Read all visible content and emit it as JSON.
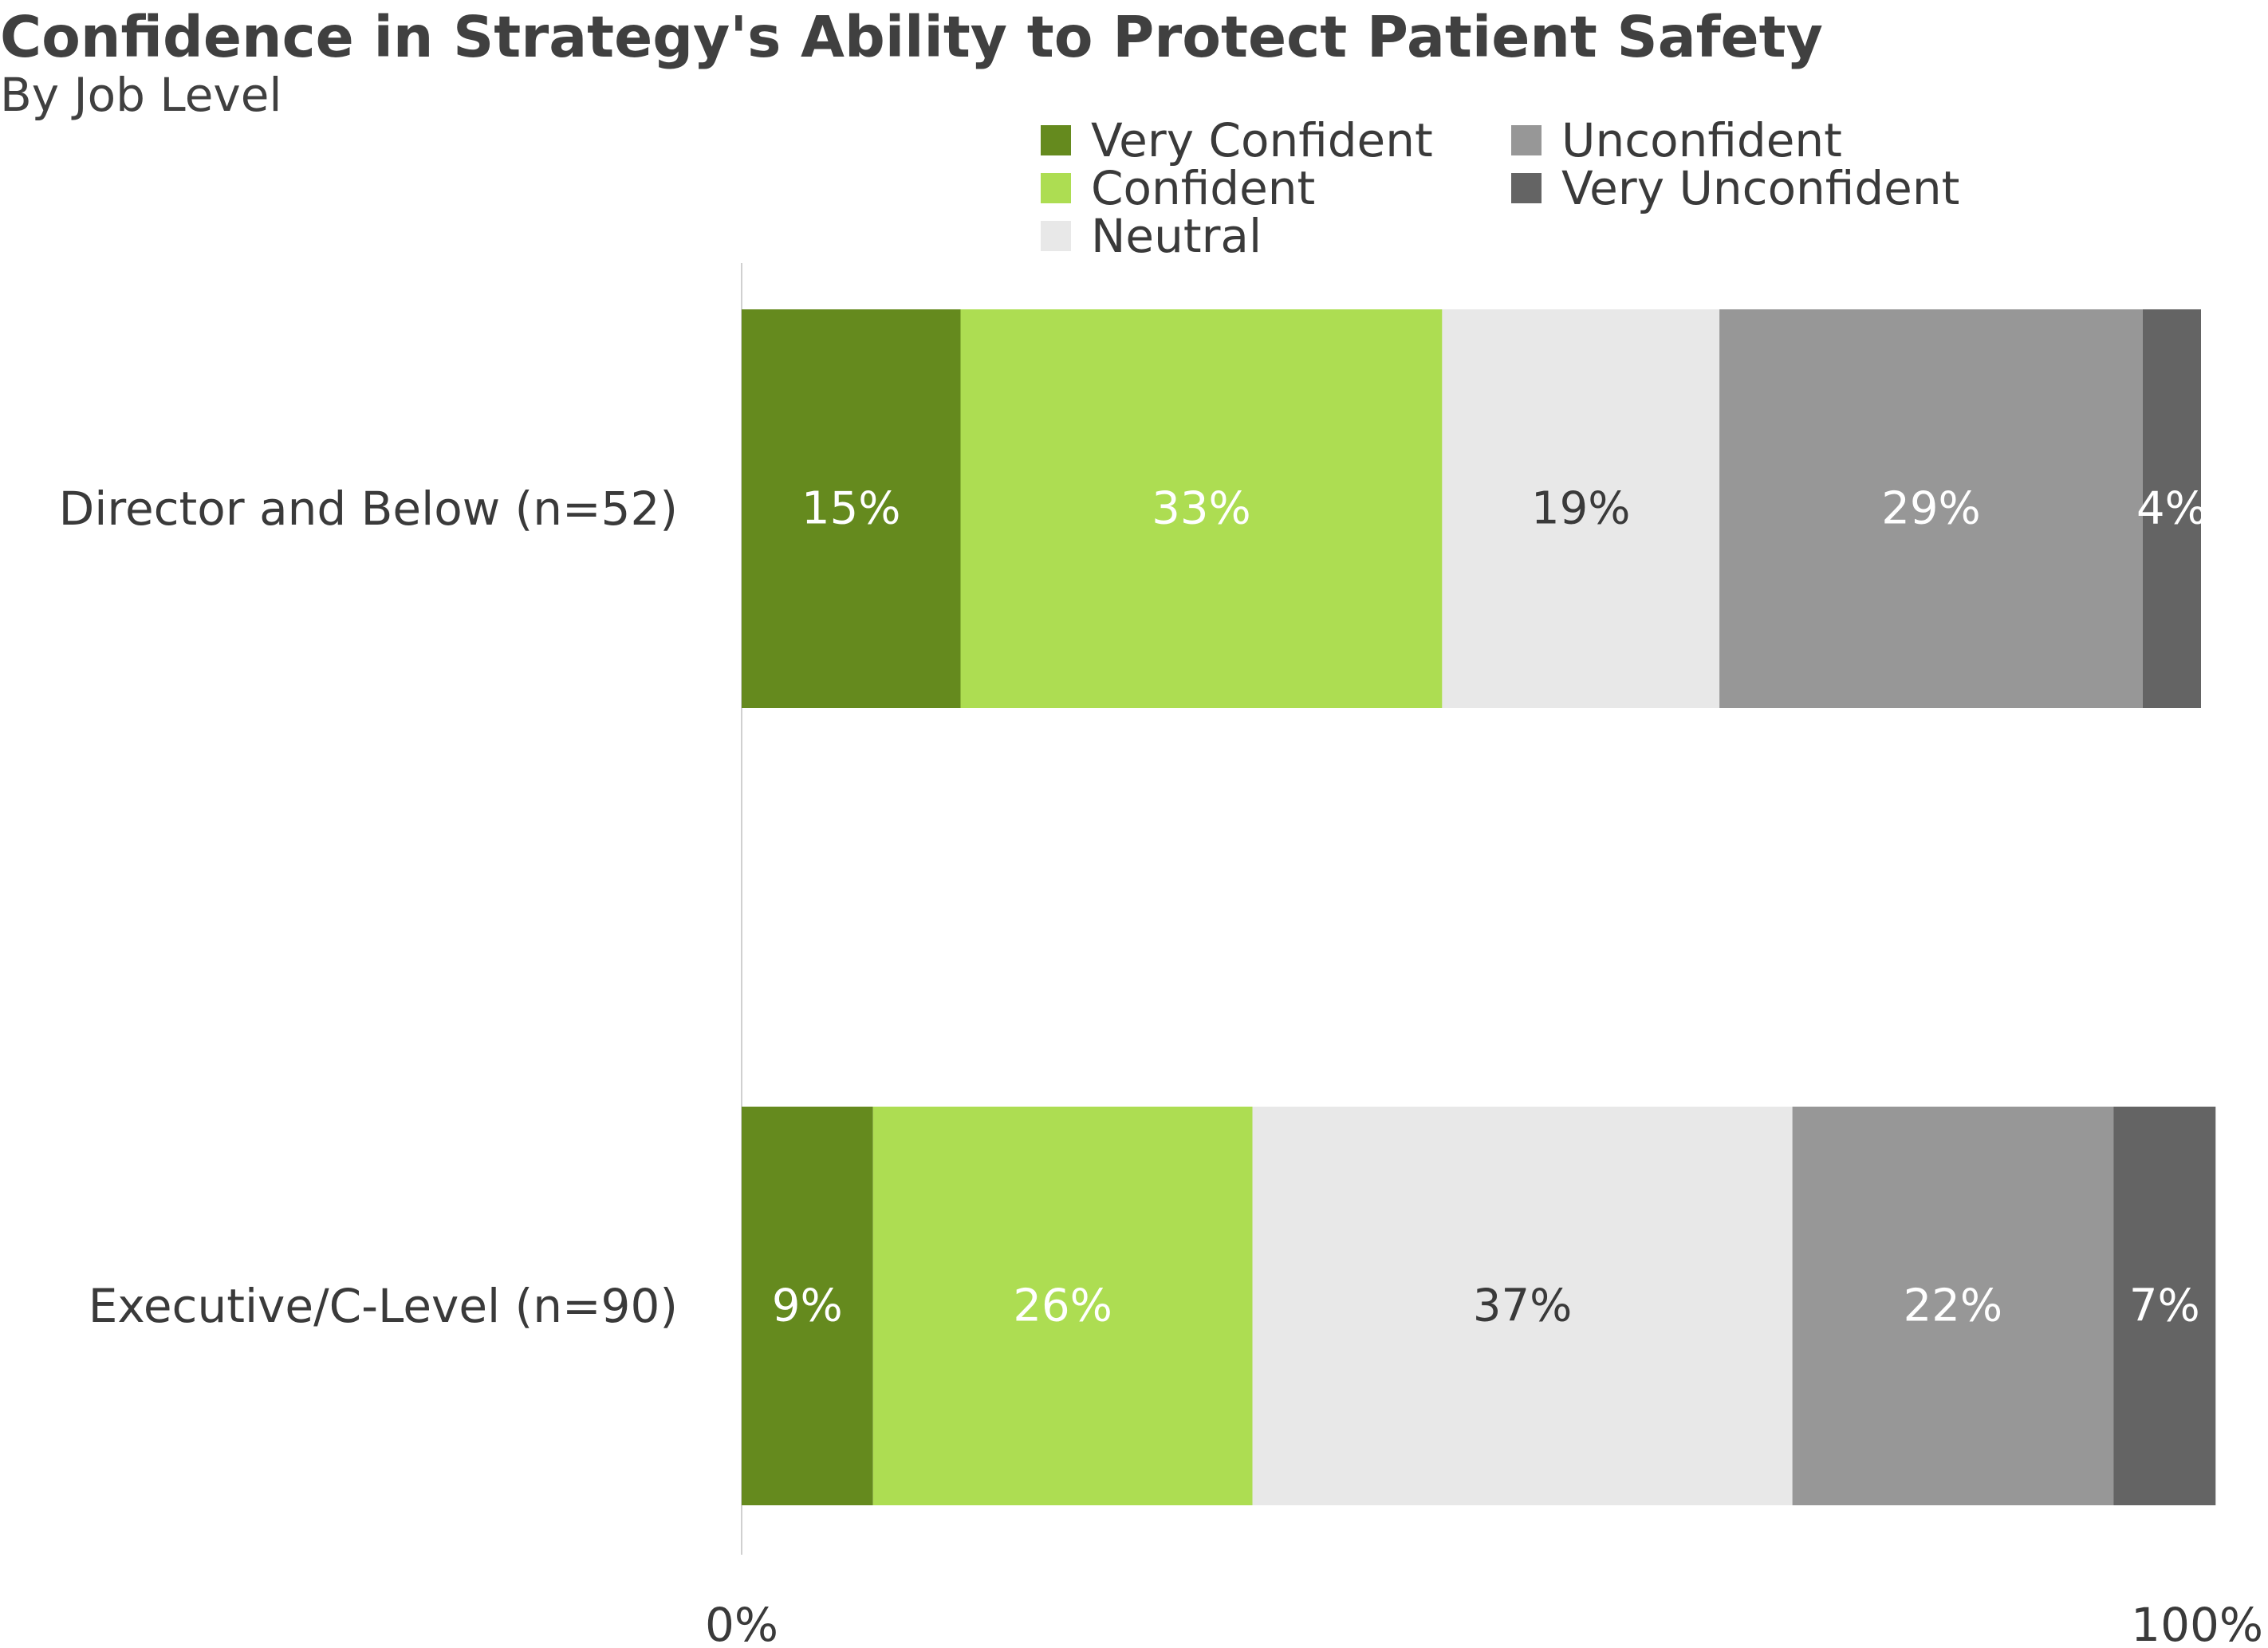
{
  "chart_data": {
    "type": "bar",
    "orientation": "horizontal",
    "stacked": true,
    "title": "Confidence in Strategy's Ability to Protect Patient Safety",
    "subtitle": "By Job Level",
    "categories": [
      "Director and Below (n=52)",
      "Executive/C-Level (n=90)"
    ],
    "series": [
      {
        "name": "Very Confident",
        "values": [
          15,
          9
        ],
        "color": "#658a1e",
        "label_color": "#ffffff"
      },
      {
        "name": "Confident",
        "values": [
          33,
          26
        ],
        "color": "#addd52",
        "label_color": "#ffffff"
      },
      {
        "name": "Neutral",
        "values": [
          19,
          37
        ],
        "color": "#e8e8e8",
        "label_color": "#3a3a3a"
      },
      {
        "name": "Unconfident",
        "values": [
          29,
          22
        ],
        "color": "#979797",
        "label_color": "#ffffff"
      },
      {
        "name": "Very Unconfident",
        "values": [
          4,
          7
        ],
        "color": "#646464",
        "label_color": "#ffffff"
      }
    ],
    "value_suffix": "%",
    "xlim": [
      0,
      100
    ],
    "x_ticks": [
      {
        "value": 0,
        "label": "0%"
      },
      {
        "value": 100,
        "label": "100%"
      }
    ],
    "legend_position": "top-right",
    "grid": false
  }
}
